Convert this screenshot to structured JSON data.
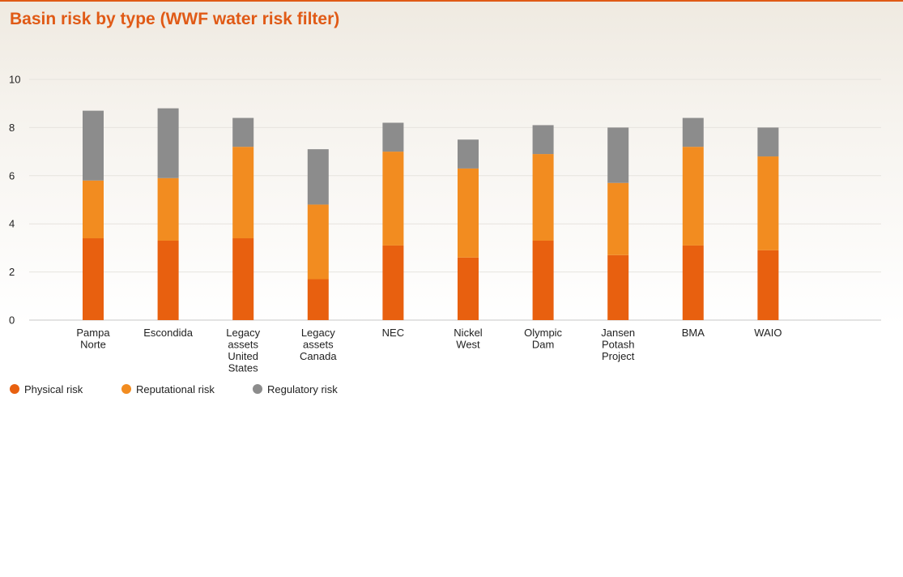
{
  "chart_data": {
    "type": "bar",
    "stacked": true,
    "title": "Basin risk by type (WWF water risk filter)",
    "xlabel": "",
    "ylabel": "",
    "ylim": [
      0,
      10
    ],
    "yticks": [
      0,
      2,
      4,
      6,
      8,
      10
    ],
    "grid": true,
    "legend_position": "bottom-left",
    "categories": [
      [
        "Pampa",
        "Norte"
      ],
      [
        "Escondida"
      ],
      [
        "Legacy",
        "assets",
        "United",
        "States"
      ],
      [
        "Legacy",
        "assets",
        "Canada"
      ],
      [
        "NEC"
      ],
      [
        "Nickel",
        "West"
      ],
      [
        "Olympic",
        "Dam"
      ],
      [
        "Jansen",
        "Potash",
        "Project"
      ],
      [
        "BMA"
      ],
      [
        "WAIO"
      ]
    ],
    "series": [
      {
        "name": "Physical risk",
        "color": "#e8600f",
        "values": [
          3.4,
          3.3,
          3.4,
          1.7,
          3.1,
          2.6,
          3.3,
          2.7,
          3.1,
          2.9
        ]
      },
      {
        "name": "Reputational risk",
        "color": "#f28c20",
        "values": [
          2.4,
          2.6,
          3.8,
          3.1,
          3.9,
          3.7,
          3.6,
          3.0,
          4.1,
          3.9
        ]
      },
      {
        "name": "Regulatory risk",
        "color": "#8c8c8c",
        "values": [
          2.9,
          2.9,
          1.2,
          2.3,
          1.2,
          1.2,
          1.2,
          2.3,
          1.2,
          1.2
        ]
      }
    ]
  }
}
